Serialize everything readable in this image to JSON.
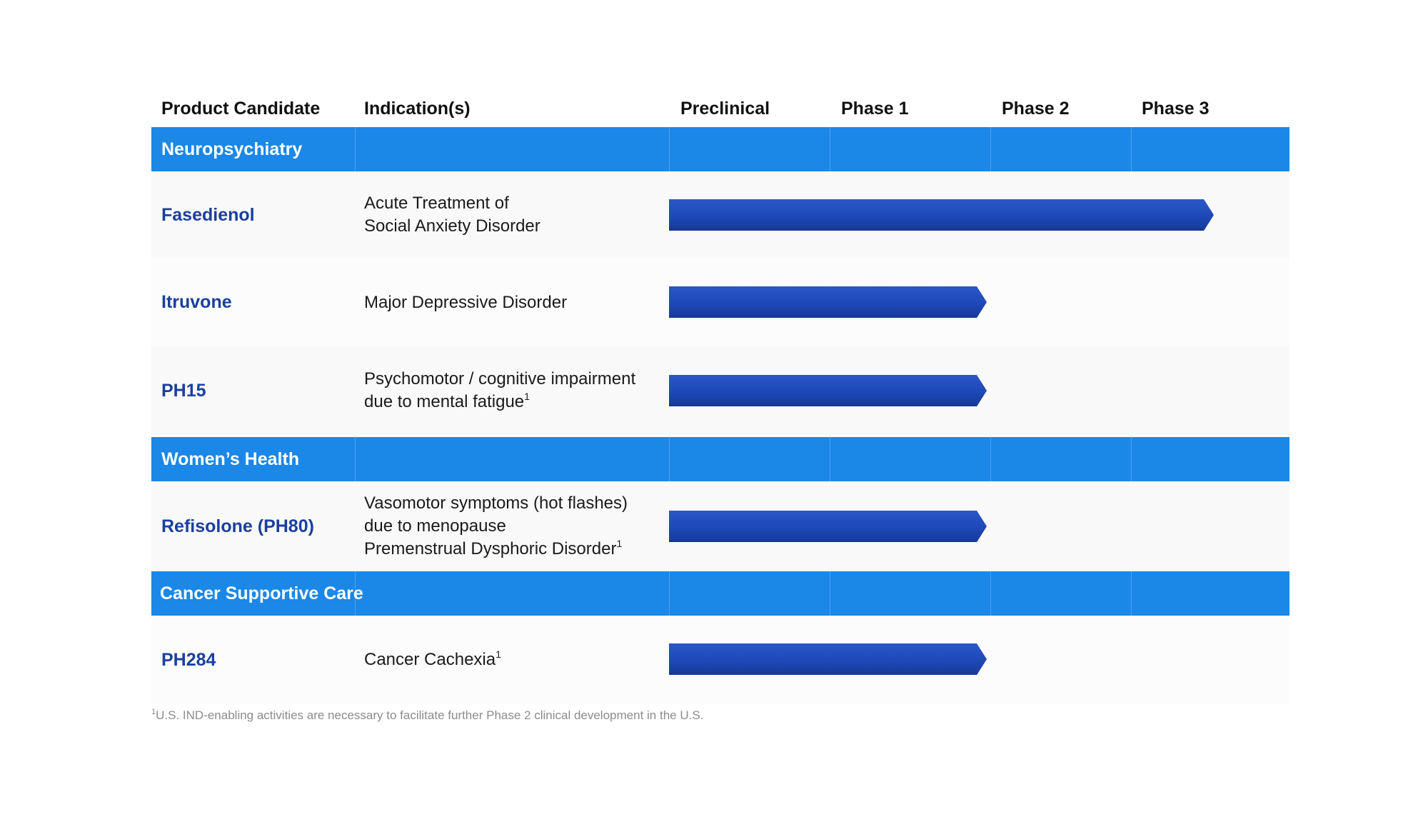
{
  "header": {
    "product_candidate": "Product Candidate",
    "indications": "Indication(s)",
    "preclinical": "Preclinical",
    "phase1": "Phase 1",
    "phase2": "Phase 2",
    "phase3": "Phase 3"
  },
  "sections": [
    {
      "title": "Neuropsychiatry",
      "rows": [
        {
          "name": "Fasedienol",
          "indication": [
            "Acute Treatment of",
            "Social Anxiety Disorder"
          ],
          "footnote_marks": [
            false,
            false
          ],
          "progress_phase": 3
        },
        {
          "name": "Itruvone",
          "indication": [
            "Major Depressive Disorder"
          ],
          "footnote_marks": [
            false
          ],
          "progress_phase": 2
        },
        {
          "name": "PH15",
          "indication": [
            "Psychomotor / cognitive impairment",
            "due to mental fatigue"
          ],
          "footnote_marks": [
            false,
            true
          ],
          "progress_phase": 2
        }
      ]
    },
    {
      "title": "Women’s Health",
      "rows": [
        {
          "name": "Refisolone (PH80)",
          "indication": [
            "Vasomotor symptoms (hot flashes)",
            "due to menopause",
            "Premenstrual Dysphoric Disorder"
          ],
          "footnote_marks": [
            false,
            false,
            true
          ],
          "progress_phase": 2
        }
      ]
    },
    {
      "title": "Cancer Supportive Care",
      "rows": [
        {
          "name": "PH284",
          "indication": [
            "Cancer Cachexia"
          ],
          "footnote_marks": [
            true
          ],
          "progress_phase": 2
        }
      ]
    }
  ],
  "footnote": {
    "mark": "1",
    "text": "U.S. IND-enabling activities are necessary to facilitate further Phase 2 clinical development in the U.S."
  },
  "colors": {
    "section_band": "#1b87e6",
    "product_name": "#1a3f9e",
    "bar_fill": "#1f48b8",
    "bar_dark": "#163a96"
  }
}
